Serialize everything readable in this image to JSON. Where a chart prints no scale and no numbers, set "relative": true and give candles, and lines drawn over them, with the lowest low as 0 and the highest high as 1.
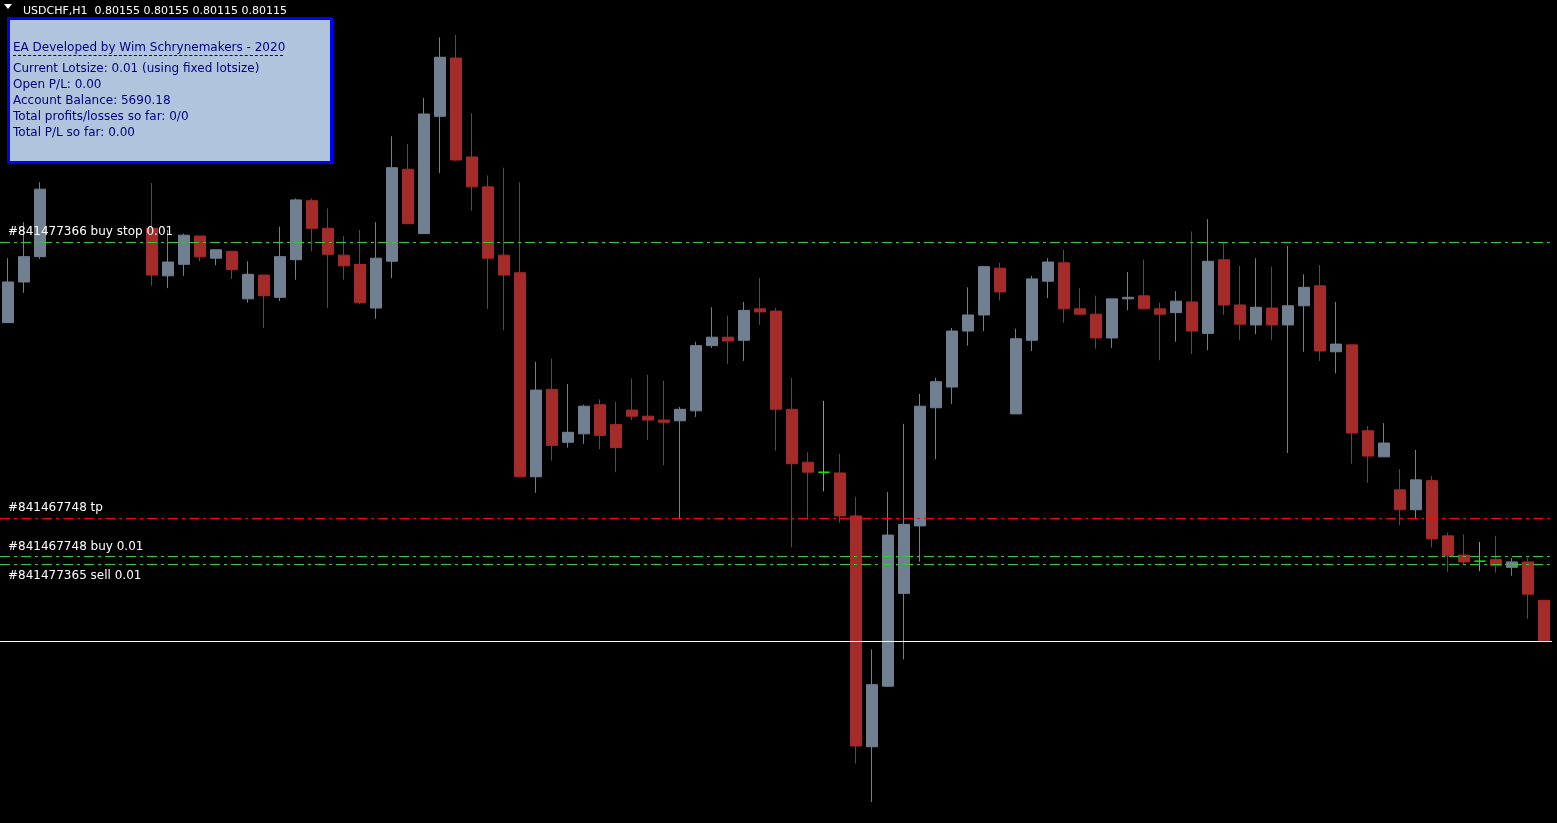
{
  "chart_data": {
    "type": "candlestick",
    "title": "USDCHF,H1  0.80155 0.80155 0.80115 0.80115",
    "relative": true,
    "grid": false,
    "annotations": [
      "EA Developed by Wim Schrynemakers - 2020",
      "Current Lotsize: 0.01 (using fixed lotsize)",
      "Open P/L: 0.00",
      "Account Balance: 5690.18",
      "Total profits/losses so far: 0/0",
      "Total P/L so far: 0.00"
    ],
    "categories": [
      null,
      null,
      null,
      null,
      null,
      null,
      null,
      null,
      null,
      null,
      null,
      null,
      null,
      null,
      null,
      null,
      null,
      null,
      null,
      null,
      null,
      null,
      null,
      null,
      null,
      null,
      null,
      null,
      null,
      null,
      null,
      null,
      null,
      null,
      null,
      null,
      null,
      null,
      null,
      null,
      null,
      null,
      null,
      null,
      null,
      null,
      null,
      null,
      null,
      null,
      null,
      null,
      null,
      null,
      null,
      null,
      null,
      null,
      null,
      null,
      null,
      null,
      null,
      null,
      null,
      null,
      null,
      null,
      null,
      null,
      null,
      null,
      null,
      null,
      null,
      null,
      null,
      null,
      null,
      null,
      null,
      null,
      null,
      null,
      null,
      null,
      null,
      null,
      null,
      null,
      null,
      null,
      null,
      null,
      null,
      null,
      null
    ],
    "ohlc": [
      [
        0.625,
        0.709,
        0.625,
        0.678
      ],
      [
        0.678,
        0.756,
        0.664,
        0.711
      ],
      [
        0.711,
        0.808,
        0.708,
        0.799
      ],
      null,
      null,
      null,
      null,
      null,
      null,
      [
        0.748,
        0.807,
        0.673,
        0.687
      ],
      [
        0.686,
        0.746,
        0.67,
        0.704
      ],
      [
        0.701,
        0.741,
        0.686,
        0.739
      ],
      [
        0.738,
        0.738,
        0.705,
        0.711
      ],
      [
        0.709,
        0.72,
        0.7,
        0.72
      ],
      [
        0.718,
        0.718,
        0.682,
        0.694
      ],
      [
        0.656,
        0.705,
        0.651,
        0.688
      ],
      [
        0.687,
        0.687,
        0.618,
        0.66
      ],
      [
        0.658,
        0.75,
        0.653,
        0.711
      ],
      [
        0.707,
        0.787,
        0.681,
        0.785
      ],
      [
        0.784,
        0.787,
        0.718,
        0.748
      ],
      [
        0.748,
        0.774,
        0.644,
        0.714
      ],
      [
        0.713,
        0.738,
        0.681,
        0.699
      ],
      [
        0.701,
        0.746,
        0.649,
        0.651
      ],
      [
        0.644,
        0.756,
        0.63,
        0.709
      ],
      [
        0.705,
        0.868,
        0.683,
        0.827
      ],
      [
        0.825,
        0.858,
        0.754,
        0.754
      ],
      [
        0.741,
        0.918,
        0.741,
        0.897
      ],
      [
        0.894,
        0.997,
        0.82,
        0.971
      ],
      [
        0.97,
        1,
        0.836,
        0.837
      ],
      [
        0.841,
        0.898,
        0.771,
        0.802
      ],
      [
        0.802,
        0.817,
        0.643,
        0.709
      ],
      [
        0.713,
        0.827,
        0.615,
        0.687
      ],
      [
        0.69,
        0.808,
        0.424,
        0.424
      ],
      [
        0.424,
        0.574,
        0.403,
        0.537
      ],
      [
        0.538,
        0.578,
        0.445,
        0.465
      ],
      [
        0.469,
        0.545,
        0.462,
        0.482
      ],
      [
        0.48,
        0.518,
        0.467,
        0.516
      ],
      [
        0.518,
        0.525,
        0.46,
        0.478
      ],
      [
        0.492,
        0.522,
        0.43,
        0.462
      ],
      [
        0.511,
        0.552,
        0.498,
        0.503
      ],
      [
        0.503,
        0.557,
        0.472,
        0.498
      ],
      [
        0.498,
        0.549,
        0.439,
        0.495
      ],
      [
        0.497,
        0.515,
        0.37,
        0.512
      ],
      [
        0.51,
        0.6,
        0.502,
        0.595
      ],
      [
        0.595,
        0.645,
        0.592,
        0.606
      ],
      [
        0.606,
        0.634,
        0.571,
        0.601
      ],
      [
        0.602,
        0.652,
        0.575,
        0.641
      ],
      [
        0.643,
        0.683,
        0.622,
        0.639
      ],
      [
        0.64,
        0.644,
        0.458,
        0.512
      ],
      [
        0.512,
        0.553,
        0.332,
        0.441
      ],
      [
        0.443,
        0.456,
        0.368,
        0.43
      ],
      [
        0.43,
        0.523,
        0.405,
        0.43
      ],
      [
        0.429,
        0.454,
        0.364,
        0.373
      ],
      [
        0.373,
        0.398,
        0.05,
        0.073
      ],
      [
        0.072,
        0.199,
        0,
        0.153
      ],
      [
        0.151,
        0.404,
        0.15,
        0.348
      ],
      [
        0.272,
        0.493,
        0.186,
        0.362
      ],
      [
        0.36,
        0.532,
        0.313,
        0.516
      ],
      [
        0.514,
        0.553,
        0.447,
        0.548
      ],
      [
        0.541,
        0.618,
        0.519,
        0.614
      ],
      [
        0.614,
        0.671,
        0.595,
        0.635
      ],
      [
        0.635,
        0.699,
        0.614,
        0.698
      ],
      [
        0.696,
        0.703,
        0.654,
        0.665
      ],
      [
        0.506,
        0.617,
        0.506,
        0.604
      ],
      [
        0.602,
        0.686,
        0.588,
        0.682
      ],
      [
        0.679,
        0.709,
        0.657,
        0.704
      ],
      [
        0.703,
        0.72,
        0.625,
        0.643
      ],
      [
        0.643,
        0.67,
        0.636,
        0.636
      ],
      [
        0.636,
        0.66,
        0.591,
        0.605
      ],
      [
        0.605,
        0.656,
        0.592,
        0.656
      ],
      [
        0.656,
        0.691,
        0.641,
        0.658
      ],
      [
        0.66,
        0.707,
        0.643,
        0.643
      ],
      [
        0.643,
        0.651,
        0.576,
        0.636
      ],
      [
        0.638,
        0.666,
        0.6,
        0.653
      ],
      [
        0.652,
        0.744,
        0.584,
        0.614
      ],
      [
        0.611,
        0.76,
        0.589,
        0.705
      ],
      [
        0.707,
        0.729,
        0.635,
        0.648
      ],
      [
        0.648,
        0.699,
        0.602,
        0.623
      ],
      [
        0.622,
        0.709,
        0.61,
        0.645
      ],
      [
        0.644,
        0.698,
        0.602,
        0.622
      ],
      [
        0.622,
        0.725,
        0.455,
        0.647
      ],
      [
        0.647,
        0.688,
        0.587,
        0.671
      ],
      [
        0.673,
        0.7,
        0.575,
        0.588
      ],
      [
        0.587,
        0.652,
        0.559,
        0.597
      ],
      [
        0.596,
        0.596,
        0.441,
        0.481
      ],
      [
        0.484,
        0.49,
        0.416,
        0.451
      ],
      [
        0.45,
        0.494,
        0.45,
        0.468
      ],
      [
        0.407,
        0.434,
        0.361,
        0.381
      ],
      [
        0.381,
        0.459,
        0.37,
        0.42
      ],
      [
        0.419,
        0.425,
        0.332,
        0.343
      ],
      [
        0.347,
        0.351,
        0.3,
        0.321
      ],
      [
        0.322,
        0.349,
        0.31,
        0.313
      ],
      [
        0.314,
        0.339,
        0.301,
        0.314
      ],
      [
        0.316,
        0.347,
        0.299,
        0.308
      ],
      [
        0.306,
        0.318,
        0.295,
        0.313
      ],
      [
        0.313,
        0.318,
        0.239,
        0.271
      ],
      [
        0.263,
        0.263,
        0.21,
        0.21
      ]
    ],
    "colors": [
      "#708090",
      "#708090",
      "#708090",
      "#708090",
      "#708090",
      "#a52a2a",
      "#a52a2a",
      "#708090",
      "#a52a2a",
      "#a52a2a",
      "#708090",
      "#708090",
      "#a52a2a",
      "#708090",
      "#a52a2a",
      "#708090",
      "#a52a2a",
      "#708090",
      "#708090",
      "#a52a2a",
      "#a52a2a",
      "#a52a2a",
      "#a52a2a",
      "#708090",
      "#708090",
      "#a52a2a",
      "#708090",
      "#708090",
      "#a52a2a",
      "#a52a2a",
      "#a52a2a",
      "#a52a2a",
      "#a52a2a",
      "#708090",
      "#a52a2a",
      "#708090",
      "#708090",
      "#a52a2a",
      "#a52a2a",
      "#a52a2a",
      "#a52a2a",
      "#a52a2a",
      "#708090",
      "#708090",
      "#708090",
      "#a52a2a",
      "#708090",
      "#a52a2a",
      "#a52a2a",
      "#a52a2a",
      "#a52a2a",
      "#00ff00",
      "#a52a2a",
      "#a52a2a",
      "#708090",
      "#708090",
      "#708090",
      "#708090",
      "#708090",
      "#708090",
      "#708090",
      "#708090",
      "#a52a2a",
      "#708090",
      "#708090",
      "#708090",
      "#a52a2a",
      "#a52a2a",
      "#a52a2a",
      "#708090",
      "#708090",
      "#a52a2a",
      "#a52a2a",
      "#708090",
      "#a52a2a",
      "#708090",
      "#a52a2a",
      "#a52a2a",
      "#708090",
      "#a52a2a",
      "#708090",
      "#708090",
      "#a52a2a",
      "#708090",
      "#a52a2a",
      "#a52a2a",
      "#708090",
      "#a52a2a",
      "#708090",
      "#a52a2a",
      "#a52a2a",
      "#a52a2a",
      "#00ff00",
      "#a52a2a",
      "#708090",
      "#a52a2a",
      "#a52a2a"
    ],
    "ref_lines": [
      {
        "axis": "y",
        "value": 0.726,
        "label": "#841477366 buy stop 0.01",
        "color": "#32cd32",
        "line_style": "dashed"
      },
      {
        "axis": "y",
        "value": 0.368,
        "label": "#841467748 tp",
        "color": "#ff0000",
        "line_style": "dashed"
      },
      {
        "axis": "y",
        "value": 0.321,
        "label": "#841467748 buy 0.01",
        "color": "#32cd32",
        "line_style": "dashed"
      },
      {
        "axis": "y",
        "value": 0.312,
        "label": "#841477365 sell 0.01",
        "color": "#32cd32",
        "line_style": "dashed"
      },
      {
        "axis": "y",
        "value": 0.211,
        "color": "#ffffff",
        "line_style": "solid"
      }
    ]
  }
}
